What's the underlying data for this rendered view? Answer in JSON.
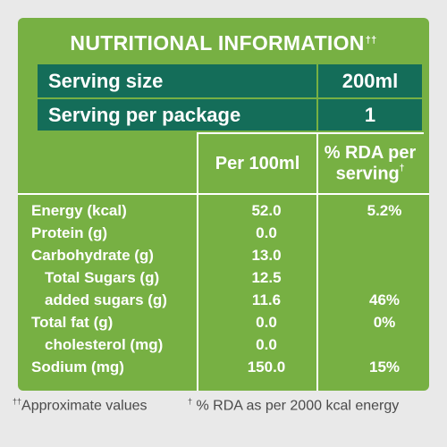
{
  "title": "NUTRITIONAL INFORMATION",
  "title_mark": "††",
  "serving_size": {
    "label": "Serving size",
    "value": "200ml"
  },
  "serving_per_package": {
    "label": "Serving per package",
    "value": "1"
  },
  "columns": {
    "per100": "Per 100ml",
    "rda_line1": "% RDA per",
    "rda_line2": "serving",
    "rda_mark": "†"
  },
  "rows": [
    {
      "name": "Energy (kcal)",
      "per100": "52.0",
      "rda": "5.2%"
    },
    {
      "name": "Protein (g)",
      "per100": "0.0",
      "rda": ""
    },
    {
      "name": "Carbohydrate (g)",
      "per100": "13.0",
      "rda": ""
    },
    {
      "name": "Total Sugars (g)",
      "per100": "12.5",
      "rda": ""
    },
    {
      "name": "added sugars (g)",
      "per100": "11.6",
      "rda": "46%"
    },
    {
      "name": "Total fat (g)",
      "per100": "0.0",
      "rda": "0%"
    },
    {
      "name": "cholesterol (mg)",
      "per100": "0.0",
      "rda": ""
    },
    {
      "name": "Sodium (mg)",
      "per100": "150.0",
      "rda": "15%"
    }
  ],
  "footer": {
    "note1_mark": "††",
    "note1": "Approximate values",
    "note2_mark": "†",
    "note2": "% RDA as per 2000 kcal energy"
  },
  "colors": {
    "panel_green": "#77b043",
    "dark_green": "#146d59",
    "background": "#e9e9e9"
  }
}
